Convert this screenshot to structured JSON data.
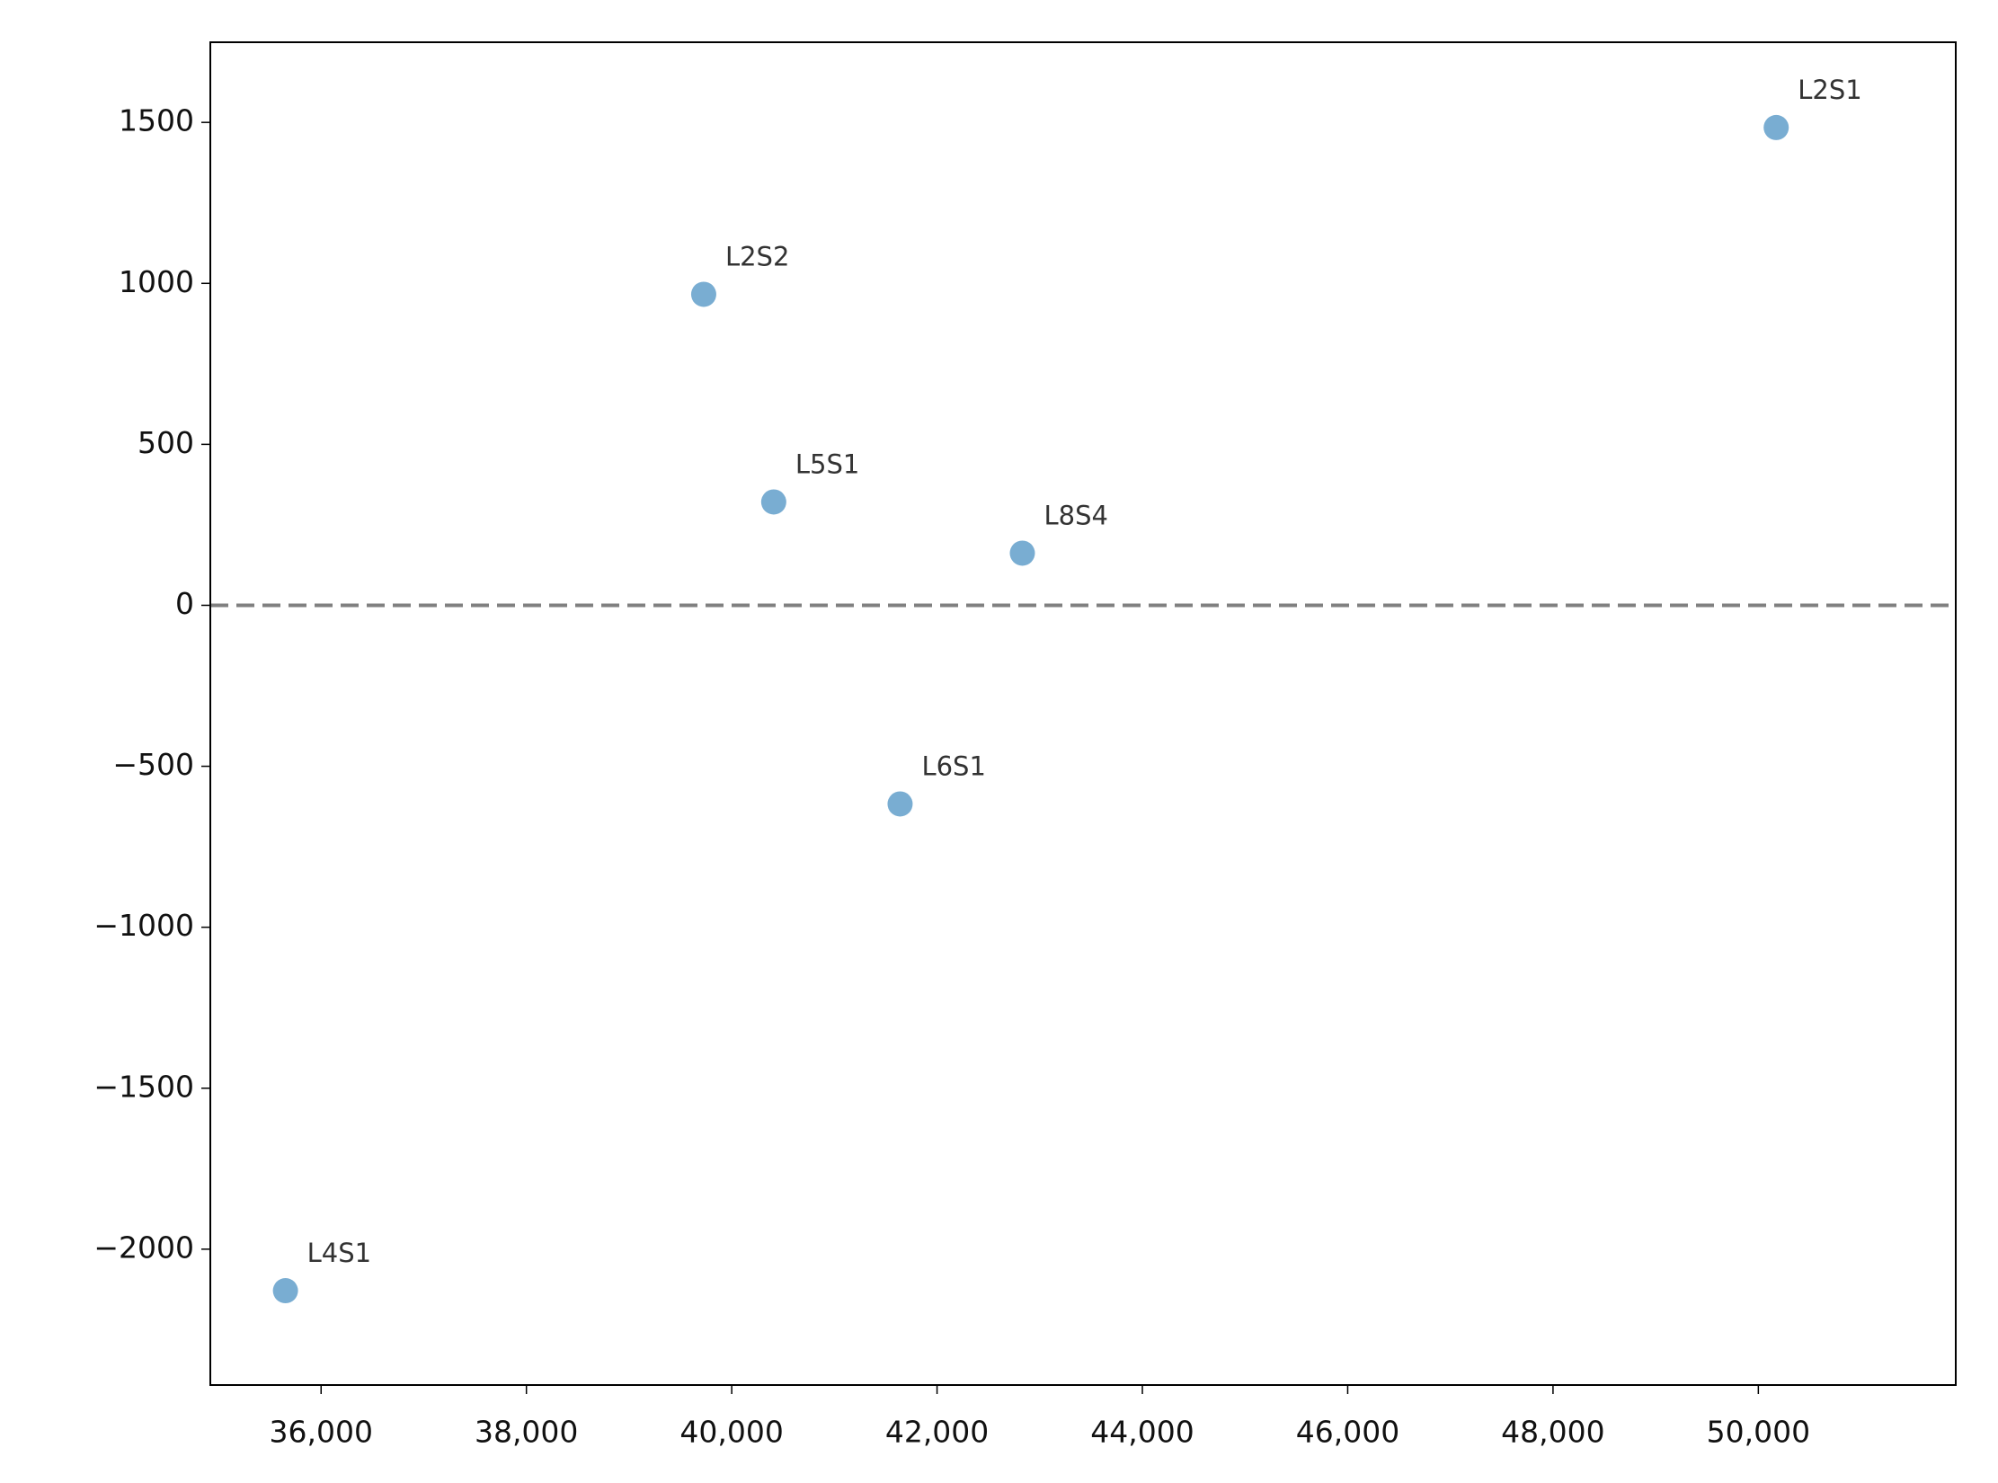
{
  "chart_data": {
    "type": "scatter",
    "x": [
      50174,
      39727,
      40409,
      42831,
      41640,
      35653
    ],
    "y": [
      1484,
      966,
      321,
      162,
      -617,
      -2129
    ],
    "labels": [
      "L2S1",
      "L2S2",
      "L5S1",
      "L8S4",
      "L6S1",
      "L4S1"
    ],
    "color": "#1f77b4",
    "alpha": 0.6,
    "xlim": [
      34921,
      51923
    ],
    "ylim": [
      -2422,
      1749
    ],
    "xticks": [
      {
        "value": 36000,
        "label": "36,000"
      },
      {
        "value": 38000,
        "label": "38,000"
      },
      {
        "value": 40000,
        "label": "40,000"
      },
      {
        "value": 42000,
        "label": "42,000"
      },
      {
        "value": 44000,
        "label": "44,000"
      },
      {
        "value": 46000,
        "label": "46,000"
      },
      {
        "value": 48000,
        "label": "48,000"
      },
      {
        "value": 50000,
        "label": "50,000"
      }
    ],
    "yticks": [
      {
        "value": -2000,
        "label": "−2000"
      },
      {
        "value": -1500,
        "label": "−1500"
      },
      {
        "value": -1000,
        "label": "−1000"
      },
      {
        "value": -500,
        "label": "−500"
      },
      0,
      500,
      1000,
      1500,
      1500
    ],
    "hline": 0,
    "hline_color": "#808080",
    "hline_style": "dashed"
  }
}
